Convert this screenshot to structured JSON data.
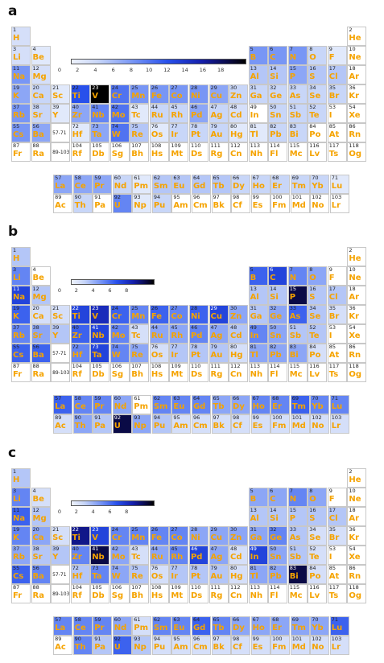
{
  "panels": [
    {
      "label": "a",
      "cbar": {
        "vmax": 20,
        "ticks": [
          0,
          2,
          4,
          6,
          8,
          10,
          12,
          14,
          16,
          18
        ]
      }
    },
    {
      "label": "b",
      "cbar": {
        "vmax": 10,
        "ticks": [
          0,
          2,
          4,
          6,
          8
        ]
      }
    },
    {
      "label": "c",
      "cbar": {
        "vmax": 10,
        "ticks": [
          0,
          2,
          4,
          6,
          8
        ]
      }
    }
  ],
  "chart_data": [
    {
      "type": "heatmap",
      "panel": "a",
      "colorbar_ticks": [
        0,
        2,
        4,
        6,
        8,
        10,
        12,
        14,
        16,
        18
      ],
      "values": {
        "H": 2,
        "Li": 2,
        "Be": 1,
        "B": 7,
        "C": 7,
        "N": 7,
        "O": 3,
        "F": 1,
        "Na": 7,
        "Mg": 2,
        "Al": 4,
        "Si": 4,
        "P": 6,
        "S": 4,
        "Cl": 4,
        "K": 6,
        "Ca": 3,
        "Sc": 1,
        "Ti": 11,
        "V": 20,
        "Cr": 9,
        "Mn": 7,
        "Fe": 7,
        "Co": 7,
        "Ni": 7,
        "Cu": 6,
        "Zn": 3,
        "Ga": 3,
        "Ge": 3,
        "As": 3,
        "Se": 3,
        "Br": 3,
        "Rb": 7,
        "Sr": 3,
        "Y": 1,
        "Zr": 6,
        "Nb": 8,
        "Mo": 9,
        "Tc": 1,
        "Ru": 3,
        "Rh": 3,
        "Pd": 6,
        "Ag": 3,
        "Cd": 2,
        "Sn": 3,
        "Sb": 3,
        "Te": 3,
        "Cs": 7,
        "Ba": 6,
        "Hf": 1,
        "Ta": 6,
        "W": 9,
        "Re": 4,
        "Os": 1,
        "Ir": 3,
        "Pt": 3,
        "Au": 3,
        "Hg": 1,
        "Tl": 1,
        "Pb": 3,
        "Bi": 3,
        "La": 6,
        "Ce": 6,
        "Pr": 6,
        "Nd": 3,
        "Pm": 1,
        "Sm": 4,
        "Eu": 4,
        "Gd": 4,
        "Tb": 4,
        "Dy": 3,
        "Ho": 3,
        "Er": 3,
        "Tm": 3,
        "Yb": 3,
        "Lu": 1,
        "Th": 3,
        "U": 8,
        "Np": 1,
        "Pu": 3
      }
    },
    {
      "type": "heatmap",
      "panel": "b",
      "colorbar_ticks": [
        0,
        2,
        4,
        6,
        8
      ],
      "values": {
        "H": 2,
        "Li": 4,
        "B": 5,
        "C": 6,
        "N": 4,
        "O": 3,
        "Na": 6,
        "Mg": 2,
        "Al": 2,
        "Si": 2,
        "P": 9,
        "S": 2,
        "Cl": 2,
        "K": 5,
        "Ca": 1,
        "Sc": 1,
        "Ti": 6,
        "V": 7,
        "Cr": 5,
        "Mn": 4,
        "Fe": 5,
        "Co": 4,
        "Ni": 5,
        "Cu": 6,
        "Zn": 3,
        "Ga": 2,
        "Ge": 3,
        "As": 5,
        "Se": 2,
        "Br": 1,
        "Rb": 4,
        "Sr": 3,
        "Y": 2,
        "Zr": 5,
        "Nb": 6,
        "Mo": 4,
        "Tc": 1,
        "Ru": 3,
        "Rh": 3,
        "Pd": 4,
        "Ag": 3,
        "Cd": 2,
        "In": 4,
        "Sn": 3,
        "Sb": 2,
        "Te": 2,
        "Cs": 5,
        "Ba": 5,
        "Hf": 4,
        "Ta": 6,
        "W": 4,
        "Re": 3,
        "Os": 1,
        "Ir": 2,
        "Pt": 2,
        "Au": 2,
        "Hg": 1,
        "Tl": 3,
        "Pb": 3,
        "Bi": 3,
        "Po": 1,
        "La": 5,
        "Ce": 4,
        "Pr": 4,
        "Nd": 3,
        "Sm": 4,
        "Eu": 4,
        "Gd": 4,
        "Tb": 3,
        "Dy": 3,
        "Ho": 4,
        "Er": 4,
        "Tm": 5,
        "Yb": 4,
        "Lu": 4,
        "Ac": 1,
        "Th": 3,
        "Pa": 2,
        "U": 9,
        "Np": 3,
        "Pu": 2,
        "Am": 1,
        "Cm": 1,
        "Bk": 1,
        "Cf": 1,
        "Es": 1,
        "Fm": 1,
        "Md": 1,
        "No": 1,
        "Lr": 1
      }
    },
    {
      "type": "heatmap",
      "panel": "c",
      "colorbar_ticks": [
        0,
        2,
        4,
        6,
        8
      ],
      "values": {
        "H": 2,
        "Li": 4,
        "Be": 1,
        "B": 3,
        "C": 3,
        "N": 4,
        "O": 3,
        "Na": 5,
        "Mg": 2,
        "Al": 2,
        "Si": 2,
        "P": 2,
        "S": 2,
        "Cl": 2,
        "K": 4,
        "Ca": 3,
        "Sc": 1,
        "Ti": 8,
        "V": 6,
        "Cr": 4,
        "Mn": 4,
        "Fe": 4,
        "Co": 4,
        "Ni": 3,
        "Cu": 3,
        "Zn": 3,
        "Ga": 3,
        "Ge": 4,
        "As": 2,
        "Se": 1,
        "Br": 1,
        "Rb": 3,
        "Sr": 2,
        "Y": 2,
        "Zr": 4,
        "Nb": 9,
        "Mo": 3,
        "Tc": 1,
        "Ru": 3,
        "Rh": 4,
        "Pd": 6,
        "Ag": 3,
        "Cd": 1,
        "In": 6,
        "Sn": 3,
        "Sb": 2,
        "Te": 1,
        "Cs": 5,
        "Ba": 4,
        "Hf": 2,
        "Ta": 4,
        "W": 3,
        "Re": 2,
        "Os": 1,
        "Ir": 2,
        "Pt": 2,
        "Au": 2,
        "Hg": 1,
        "Tl": 3,
        "Pb": 3,
        "Bi": 9,
        "Po": 1,
        "La": 4,
        "Ce": 4,
        "Pr": 4,
        "Nd": 3,
        "Pm": 1,
        "Sm": 4,
        "Eu": 4,
        "Gd": 5,
        "Tb": 4,
        "Dy": 3,
        "Ho": 3,
        "Er": 3,
        "Tm": 3,
        "Yb": 3,
        "Lu": 5,
        "Th": 4,
        "Pa": 2,
        "U": 5,
        "Np": 2,
        "Pu": 1,
        "Am": 1,
        "Cm": 1,
        "Bk": 1,
        "Cf": 1,
        "Es": 1,
        "Fm": 1,
        "Md": 1,
        "No": 1,
        "Lr": 1
      }
    }
  ],
  "elements": [
    [
      "1",
      "H"
    ],
    [
      "2",
      "He"
    ],
    [
      "3",
      "Li"
    ],
    [
      "4",
      "Be"
    ],
    [
      "5",
      "B"
    ],
    [
      "6",
      "C"
    ],
    [
      "7",
      "N"
    ],
    [
      "8",
      "O"
    ],
    [
      "9",
      "F"
    ],
    [
      "10",
      "Ne"
    ],
    [
      "11",
      "Na"
    ],
    [
      "12",
      "Mg"
    ],
    [
      "13",
      "Al"
    ],
    [
      "14",
      "Si"
    ],
    [
      "15",
      "P"
    ],
    [
      "16",
      "S"
    ],
    [
      "17",
      "Cl"
    ],
    [
      "18",
      "Ar"
    ],
    [
      "19",
      "K"
    ],
    [
      "20",
      "Ca"
    ],
    [
      "21",
      "Sc"
    ],
    [
      "22",
      "Ti"
    ],
    [
      "23",
      "V"
    ],
    [
      "24",
      "Cr"
    ],
    [
      "25",
      "Mn"
    ],
    [
      "26",
      "Fe"
    ],
    [
      "27",
      "Co"
    ],
    [
      "28",
      "Ni"
    ],
    [
      "29",
      "Cu"
    ],
    [
      "30",
      "Zn"
    ],
    [
      "31",
      "Ga"
    ],
    [
      "32",
      "Ge"
    ],
    [
      "33",
      "As"
    ],
    [
      "34",
      "Se"
    ],
    [
      "35",
      "Br"
    ],
    [
      "36",
      "Kr"
    ],
    [
      "37",
      "Rb"
    ],
    [
      "38",
      "Sr"
    ],
    [
      "39",
      "Y"
    ],
    [
      "40",
      "Zr"
    ],
    [
      "41",
      "Nb"
    ],
    [
      "42",
      "Mo"
    ],
    [
      "43",
      "Tc"
    ],
    [
      "44",
      "Ru"
    ],
    [
      "45",
      "Rh"
    ],
    [
      "46",
      "Pd"
    ],
    [
      "47",
      "Ag"
    ],
    [
      "48",
      "Cd"
    ],
    [
      "49",
      "In"
    ],
    [
      "50",
      "Sn"
    ],
    [
      "51",
      "Sb"
    ],
    [
      "52",
      "Te"
    ],
    [
      "53",
      "I"
    ],
    [
      "54",
      "Xe"
    ],
    [
      "55",
      "Cs"
    ],
    [
      "56",
      "Ba"
    ],
    [
      "72",
      "Hf"
    ],
    [
      "73",
      "Ta"
    ],
    [
      "74",
      "W"
    ],
    [
      "75",
      "Re"
    ],
    [
      "76",
      "Os"
    ],
    [
      "77",
      "Ir"
    ],
    [
      "78",
      "Pt"
    ],
    [
      "79",
      "Au"
    ],
    [
      "80",
      "Hg"
    ],
    [
      "81",
      "Tl"
    ],
    [
      "82",
      "Pb"
    ],
    [
      "83",
      "Bi"
    ],
    [
      "84",
      "Po"
    ],
    [
      "85",
      "At"
    ],
    [
      "86",
      "Rn"
    ],
    [
      "87",
      "Fr"
    ],
    [
      "88",
      "Ra"
    ],
    [
      "104",
      "Rf"
    ],
    [
      "105",
      "Db"
    ],
    [
      "106",
      "Sg"
    ],
    [
      "107",
      "Bh"
    ],
    [
      "108",
      "Hs"
    ],
    [
      "109",
      "Mt"
    ],
    [
      "110",
      "Ds"
    ],
    [
      "111",
      "Rg"
    ],
    [
      "112",
      "Cn"
    ],
    [
      "113",
      "Nh"
    ],
    [
      "114",
      "Fl"
    ],
    [
      "115",
      "Mc"
    ],
    [
      "116",
      "Lv"
    ],
    [
      "117",
      "Ts"
    ],
    [
      "118",
      "Og"
    ],
    [
      "57",
      "La"
    ],
    [
      "58",
      "Ce"
    ],
    [
      "59",
      "Pr"
    ],
    [
      "60",
      "Nd"
    ],
    [
      "61",
      "Pm"
    ],
    [
      "62",
      "Sm"
    ],
    [
      "63",
      "Eu"
    ],
    [
      "64",
      "Gd"
    ],
    [
      "65",
      "Tb"
    ],
    [
      "66",
      "Dy"
    ],
    [
      "67",
      "Ho"
    ],
    [
      "68",
      "Er"
    ],
    [
      "69",
      "Tm"
    ],
    [
      "70",
      "Yb"
    ],
    [
      "71",
      "Lu"
    ],
    [
      "89",
      "Ac"
    ],
    [
      "90",
      "Th"
    ],
    [
      "91",
      "Pa"
    ],
    [
      "92",
      "U"
    ],
    [
      "93",
      "Np"
    ],
    [
      "94",
      "Pu"
    ],
    [
      "95",
      "Am"
    ],
    [
      "96",
      "Cm"
    ],
    [
      "97",
      "Bk"
    ],
    [
      "98",
      "Cf"
    ],
    [
      "99",
      "Es"
    ],
    [
      "100",
      "Fm"
    ],
    [
      "101",
      "Md"
    ],
    [
      "102",
      "No"
    ],
    [
      "103",
      "Lr"
    ]
  ],
  "gap_labels": {
    "period6": "57-71",
    "period7": "89-103"
  }
}
